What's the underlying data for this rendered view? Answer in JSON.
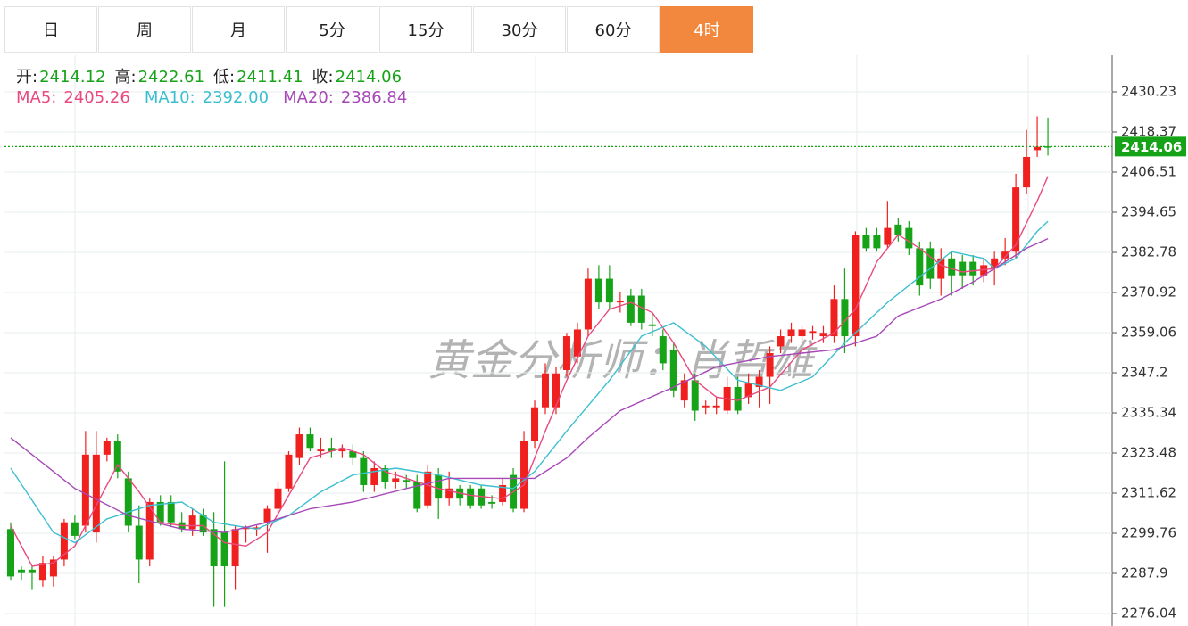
{
  "chart_data": {
    "type": "candlestick",
    "tabs": [
      "日",
      "周",
      "月",
      "5分",
      "15分",
      "30分",
      "60分",
      "4时"
    ],
    "active_tab": 7,
    "ohlc_labels": [
      "开:",
      "高:",
      "低:",
      "收:"
    ],
    "watermark": "黄金分析师：肖哲雄",
    "up_color": "#f0201e",
    "down_color": "#17a317",
    "candles": {
      "open": [
        2301,
        2289,
        2289,
        2286,
        2287,
        2292,
        2303,
        2302,
        2300,
        2323,
        2327,
        2316,
        2302,
        2292,
        2309,
        2309,
        2303,
        2301,
        2305,
        2301,
        2300,
        2290,
        2301,
        2301,
        2303,
        2307,
        2313,
        2322,
        2329,
        2324,
        2325,
        2324,
        2324,
        2322,
        2314,
        2319,
        2315,
        2315.5,
        2315,
        2308,
        2317,
        2310,
        2313,
        2313,
        2313,
        2309,
        2309,
        2317,
        2307,
        2327,
        2337,
        2337,
        2348,
        2352,
        2360,
        2375,
        2375,
        2368,
        2370,
        2370,
        2361.5,
        2358,
        2354,
        2339,
        2345,
        2337,
        2337,
        2336,
        2343,
        2340,
        2343,
        2346,
        2355,
        2358,
        2358,
        2359,
        2358,
        2358,
        2369,
        2358,
        2388,
        2388,
        2385,
        2391,
        2390,
        2384,
        2384,
        2375,
        2381,
        2380,
        2380,
        2376,
        2378,
        2381,
        2383,
        2402,
        2413,
        2414.12
      ],
      "high": [
        2303,
        2290,
        2290,
        2293,
        2293,
        2304,
        2305,
        2330,
        2330,
        2328,
        2329,
        2318,
        2308,
        2310,
        2311,
        2311,
        2306,
        2307,
        2307,
        2306,
        2321,
        2302,
        2302,
        2302,
        2308,
        2315,
        2324,
        2331,
        2331,
        2328,
        2328,
        2326,
        2326,
        2324,
        2321,
        2320,
        2318,
        2317,
        2317,
        2320,
        2319,
        2318,
        2314,
        2314,
        2314,
        2311,
        2316,
        2319,
        2330,
        2339,
        2350,
        2349,
        2359,
        2362,
        2378,
        2379,
        2379,
        2371,
        2372,
        2372,
        2365,
        2360,
        2356,
        2347,
        2347,
        2339,
        2340,
        2346,
        2346,
        2347,
        2348,
        2355,
        2360,
        2362,
        2361,
        2361,
        2361,
        2373,
        2378,
        2389,
        2390,
        2390,
        2398,
        2393,
        2392,
        2386,
        2386,
        2384,
        2383,
        2382,
        2382,
        2381,
        2383,
        2387,
        2406,
        2419,
        2423,
        2422.61
      ],
      "low": [
        2286,
        2286,
        2283,
        2284,
        2284,
        2290,
        2298,
        2300,
        2297,
        2321,
        2316,
        2300,
        2285,
        2290,
        2302,
        2302,
        2300,
        2299,
        2299,
        2278,
        2278,
        2283,
        2297,
        2299,
        2294,
        2305,
        2312,
        2320,
        2324,
        2322,
        2322,
        2322,
        2320,
        2312,
        2312,
        2313,
        2313,
        2313,
        2306,
        2307,
        2304,
        2308,
        2308,
        2307,
        2307,
        2307,
        2308,
        2306,
        2306,
        2325,
        2335,
        2335,
        2346,
        2350,
        2358,
        2366,
        2366,
        2365,
        2361,
        2360,
        2358,
        2348,
        2340,
        2337,
        2333,
        2335,
        2335,
        2335,
        2335,
        2338,
        2337,
        2338,
        2353,
        2356,
        2356,
        2357,
        2356,
        2356,
        2353,
        2355,
        2383,
        2383,
        2384,
        2386,
        2382,
        2370,
        2372,
        2370,
        2370,
        2372,
        2373,
        2374,
        2373,
        2379,
        2381,
        2400,
        2411,
        2411.41
      ],
      "close": [
        2287,
        2288,
        2288,
        2291,
        2292,
        2303,
        2299,
        2323,
        2323,
        2327,
        2318,
        2302,
        2292,
        2309,
        2303,
        2303,
        2301,
        2305,
        2300,
        2290,
        2290,
        2301,
        2301.5,
        2301.5,
        2307,
        2313,
        2323,
        2329,
        2325,
        2324.5,
        2324,
        2324.5,
        2322,
        2314,
        2319,
        2315,
        2316,
        2315,
        2307,
        2318,
        2310,
        2313,
        2310,
        2308,
        2308,
        2308.5,
        2314,
        2307,
        2327,
        2337,
        2347,
        2347,
        2358,
        2360,
        2375,
        2368,
        2368,
        2368.5,
        2362,
        2362,
        2361,
        2350,
        2342,
        2345,
        2336,
        2337.5,
        2337.5,
        2343,
        2336,
        2344,
        2346,
        2353,
        2358,
        2360,
        2360,
        2359.5,
        2359,
        2369,
        2358,
        2388,
        2384,
        2384,
        2390,
        2388,
        2384,
        2373,
        2375,
        2381,
        2376,
        2376,
        2376,
        2379,
        2381,
        2383,
        2402,
        2411,
        2414,
        2414.06
      ]
    },
    "series": [
      {
        "name": "MA5:",
        "value_label": "2405.26",
        "color": "#e84a7f",
        "x": [
          0,
          2,
          4,
          6,
          8,
          10,
          12,
          14,
          16,
          18,
          20,
          22,
          24,
          26,
          28,
          31,
          33,
          35,
          37,
          40,
          43,
          46,
          48,
          50,
          52,
          54,
          56,
          58,
          60,
          62,
          64,
          66,
          68,
          71,
          74,
          77,
          79,
          81,
          83,
          85,
          87,
          89,
          92,
          94,
          96,
          97
        ],
        "values": [
          2302,
          2290,
          2291,
          2296,
          2308,
          2320,
          2312,
          2303,
          2302,
          2302,
          2297,
          2296,
          2300,
          2311,
          2322,
          2325,
          2323,
          2318,
          2316,
          2313,
          2311,
          2310,
          2314,
          2330,
          2345,
          2358,
          2366,
          2368,
          2365,
          2356,
          2345,
          2340,
          2339,
          2343,
          2354,
          2359,
          2366,
          2380,
          2388,
          2384,
          2379,
          2377,
          2378,
          2385,
          2398,
          2405.26
        ]
      },
      {
        "name": "MA10:",
        "value_label": "2392.00",
        "color": "#3bbfd0",
        "x": [
          0,
          4,
          6,
          9,
          13,
          16,
          19,
          23,
          26,
          29,
          32,
          36,
          40,
          44,
          47,
          49,
          52,
          56,
          59,
          62,
          65,
          68,
          72,
          75,
          78,
          82,
          86,
          88,
          91,
          92,
          94,
          96,
          97
        ],
        "values": [
          2319,
          2300,
          2297,
          2304,
          2308,
          2309,
          2303,
          2301,
          2305,
          2312,
          2317,
          2319,
          2317,
          2314,
          2313,
          2318,
          2330,
          2345,
          2358,
          2362,
          2355,
          2345,
          2342,
          2346,
          2356,
          2368,
          2378,
          2383,
          2381,
          2378,
          2381,
          2389,
          2392
        ]
      },
      {
        "name": "MA20:",
        "value_label": "2386.84",
        "color": "#a748b8",
        "x": [
          0,
          6,
          11,
          16,
          20,
          24,
          28,
          32,
          37,
          41,
          46,
          49,
          52,
          54,
          57,
          62,
          66,
          71,
          74,
          77,
          81,
          83,
          87,
          90,
          92,
          95,
          97
        ],
        "values": [
          2328,
          2313,
          2305,
          2301,
          2300,
          2303,
          2307,
          2309,
          2313,
          2316,
          2316,
          2316,
          2322,
          2328,
          2336,
          2343,
          2349,
          2352,
          2353,
          2354,
          2358,
          2364,
          2369,
          2374,
          2378,
          2384,
          2386.84
        ]
      }
    ],
    "ylim": [
      2272.35,
      2441.04
    ],
    "yticks": [
      2276.04,
      2287.9,
      2299.76,
      2311.62,
      2323.48,
      2335.34,
      2347.2,
      2359.06,
      2370.92,
      2382.78,
      2394.65,
      2406.51,
      2418.37,
      2430.23
    ],
    "grid": true
  }
}
